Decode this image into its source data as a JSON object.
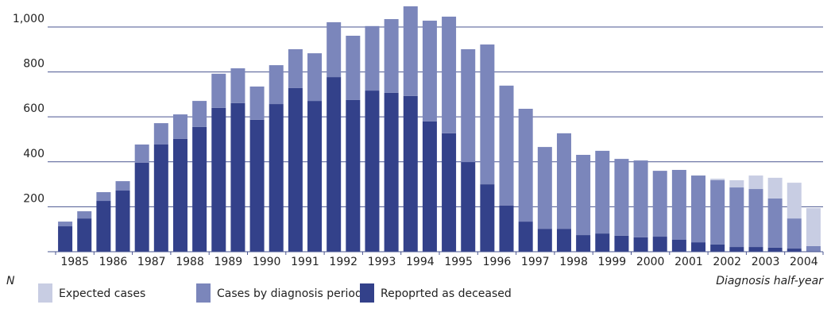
{
  "chart_data": {
    "type": "stacked-bar",
    "x_label": "Diagnosis half-year",
    "y_label": "N",
    "categories": [
      "1985",
      null,
      "1986",
      null,
      "1987",
      null,
      "1988",
      null,
      "1989",
      null,
      "1990",
      null,
      "1991",
      null,
      "1992",
      null,
      "1993",
      null,
      "1994",
      null,
      "1995",
      null,
      "1996",
      null,
      "1997",
      null,
      "1998",
      null,
      "1999",
      null,
      "2000",
      null,
      "2001",
      null,
      "2002",
      null,
      "2003",
      null,
      "2004",
      null
    ],
    "series": [
      {
        "name": "Repoprted as deceased",
        "color": "#33418a",
        "values": [
          113,
          148,
          226,
          272,
          396,
          477,
          502,
          555,
          640,
          661,
          587,
          657,
          728,
          671,
          777,
          675,
          717,
          707,
          693,
          580,
          527,
          399,
          300,
          205,
          134,
          102,
          102,
          74,
          81,
          71,
          64,
          67,
          53,
          42,
          32,
          21,
          21,
          18,
          14,
          0
        ]
      },
      {
        "name": "Cases by diagnosis period",
        "color": "#7b86bb",
        "values": [
          21,
          32,
          39,
          42,
          81,
          95,
          109,
          116,
          152,
          155,
          148,
          173,
          173,
          212,
          244,
          286,
          287,
          328,
          399,
          448,
          519,
          502,
          622,
          534,
          502,
          364,
          425,
          357,
          368,
          342,
          342,
          293,
          311,
          297,
          286,
          265,
          258,
          219,
          134,
          25
        ]
      },
      {
        "name": "Expected cases",
        "color": "#c8cde3",
        "values": [
          0,
          0,
          0,
          0,
          0,
          0,
          0,
          0,
          0,
          0,
          0,
          0,
          0,
          0,
          0,
          0,
          0,
          0,
          0,
          0,
          0,
          0,
          0,
          0,
          0,
          0,
          0,
          0,
          0,
          0,
          0,
          0,
          0,
          0,
          7,
          32,
          60,
          92,
          159,
          169
        ]
      }
    ],
    "ylim": [
      0,
      1120
    ],
    "yticks": [
      200,
      400,
      600,
      800,
      {
        "value": 1000,
        "label": "1,000"
      }
    ],
    "grid": true
  }
}
